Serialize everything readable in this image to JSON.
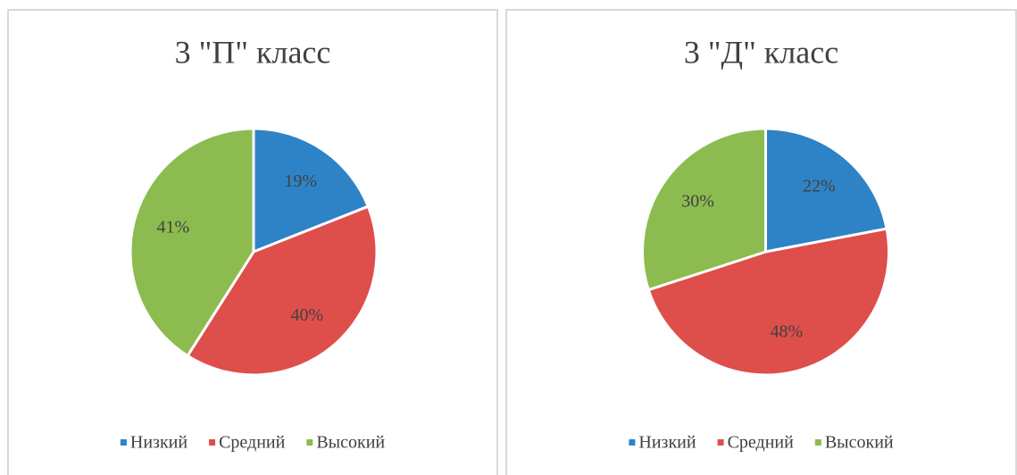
{
  "chart_data": [
    {
      "type": "pie",
      "title": "3 \"П\"  класс",
      "categories": [
        "Низкий",
        "Средний",
        "Высокий"
      ],
      "values": [
        19,
        40,
        41
      ],
      "value_labels": [
        "19%",
        "40%",
        "41%"
      ],
      "colors": [
        "#2e83c6",
        "#de4e4b",
        "#8cbc4f"
      ],
      "legend": "bottom"
    },
    {
      "type": "pie",
      "title": "3 \"Д\"  класс",
      "categories": [
        "Низкий",
        "Средний",
        "Высокий"
      ],
      "values": [
        22,
        48,
        30
      ],
      "value_labels": [
        "22%",
        "48%",
        "30%"
      ],
      "colors": [
        "#2e83c6",
        "#de4e4b",
        "#8cbc4f"
      ],
      "legend": "bottom"
    }
  ]
}
